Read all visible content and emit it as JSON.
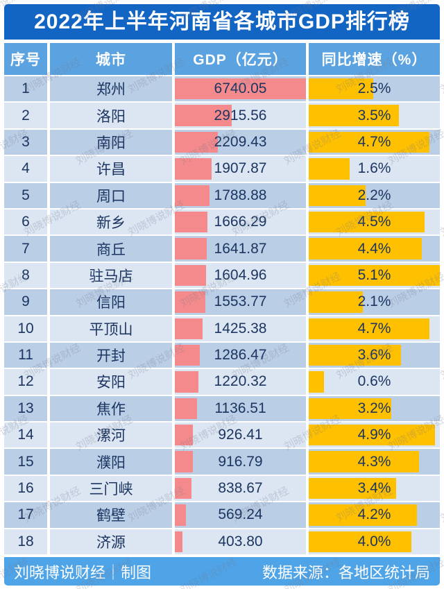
{
  "title": "2022年上半年河南省各城市GDP排行榜",
  "footer": {
    "credit": "刘晓博说财经｜制图",
    "source": "数据来源：各地区统计局"
  },
  "watermark_text": "刘晓博说财经",
  "colors": {
    "title_bg": "#1365C4",
    "header_bg": "#5BA3E0",
    "footer_bg": "#4FA4E8",
    "row_odd": "#BACEE6",
    "row_even": "#DCE6F2",
    "gdp_bar": "#F48A8C",
    "growth_bar": "#FFC000",
    "text_dark": "#1C3561"
  },
  "chart_data": {
    "type": "table",
    "title": "2022年上半年河南省各城市GDP排行榜",
    "columns": [
      "序号",
      "城市",
      "GDP（亿元）",
      "同比增速（%）"
    ],
    "gdp_axis_max": 6740.05,
    "growth_axis_max": 5.1,
    "rows": [
      {
        "rank": 1,
        "city": "郑州",
        "gdp": 6740.05,
        "growth": 2.5
      },
      {
        "rank": 2,
        "city": "洛阳",
        "gdp": 2915.56,
        "growth": 3.5
      },
      {
        "rank": 3,
        "city": "南阳",
        "gdp": 2209.43,
        "growth": 4.7
      },
      {
        "rank": 4,
        "city": "许昌",
        "gdp": 1907.87,
        "growth": 1.6
      },
      {
        "rank": 5,
        "city": "周口",
        "gdp": 1788.88,
        "growth": 2.2
      },
      {
        "rank": 6,
        "city": "新乡",
        "gdp": 1666.29,
        "growth": 4.5
      },
      {
        "rank": 7,
        "city": "商丘",
        "gdp": 1641.87,
        "growth": 4.4
      },
      {
        "rank": 8,
        "city": "驻马店",
        "gdp": 1604.96,
        "growth": 5.1
      },
      {
        "rank": 9,
        "city": "信阳",
        "gdp": 1553.77,
        "growth": 2.1
      },
      {
        "rank": 10,
        "city": "平顶山",
        "gdp": 1425.38,
        "growth": 4.7
      },
      {
        "rank": 11,
        "city": "开封",
        "gdp": 1286.47,
        "growth": 3.6
      },
      {
        "rank": 12,
        "city": "安阳",
        "gdp": 1220.32,
        "growth": 0.6
      },
      {
        "rank": 13,
        "city": "焦作",
        "gdp": 1136.51,
        "growth": 3.2
      },
      {
        "rank": 14,
        "city": "漯河",
        "gdp": 926.41,
        "growth": 4.9
      },
      {
        "rank": 15,
        "city": "濮阳",
        "gdp": 916.79,
        "growth": 4.3
      },
      {
        "rank": 16,
        "city": "三门峡",
        "gdp": 838.67,
        "growth": 3.4
      },
      {
        "rank": 17,
        "city": "鹤壁",
        "gdp": 569.24,
        "growth": 4.2
      },
      {
        "rank": 18,
        "city": "济源",
        "gdp": 403.8,
        "growth": 4.0
      }
    ]
  }
}
